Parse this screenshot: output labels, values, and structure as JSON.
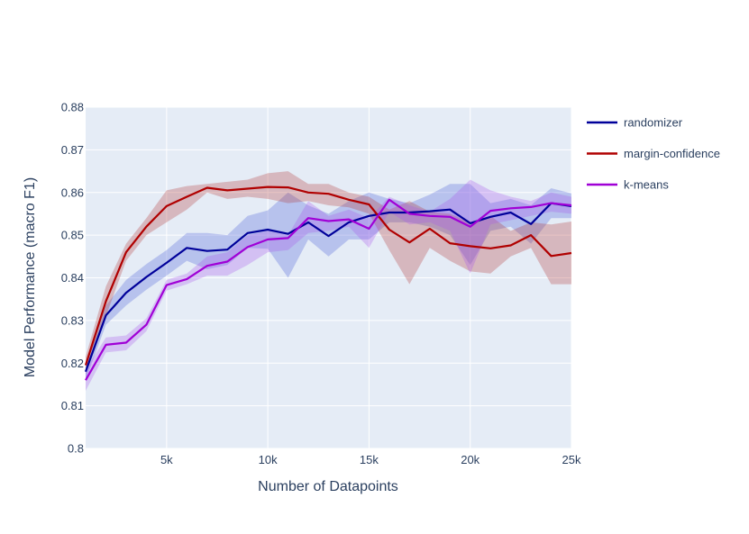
{
  "chart_data": {
    "type": "line",
    "title": "",
    "xlabel": "Number of Datapoints",
    "ylabel": "Model Performance (macro F1)",
    "xlim": [
      1000,
      25000
    ],
    "ylim": [
      0.8,
      0.88
    ],
    "x_ticks": [
      5000,
      10000,
      15000,
      20000,
      25000
    ],
    "x_tick_labels": [
      "5k",
      "10k",
      "15k",
      "20k",
      "25k"
    ],
    "y_ticks": [
      0.8,
      0.81,
      0.82,
      0.83,
      0.84,
      0.85,
      0.86,
      0.87,
      0.88
    ],
    "y_tick_labels": [
      "0.8",
      "0.81",
      "0.82",
      "0.83",
      "0.84",
      "0.85",
      "0.86",
      "0.87",
      "0.88"
    ],
    "grid": true,
    "legend_position": "top-right",
    "x": [
      1000,
      2000,
      3000,
      4000,
      5000,
      6000,
      7000,
      8000,
      9000,
      10000,
      11000,
      12000,
      13000,
      14000,
      15000,
      16000,
      17000,
      18000,
      19000,
      20000,
      21000,
      22000,
      23000,
      24000,
      25000
    ],
    "series": [
      {
        "name": "randomizer",
        "color": "#00009a",
        "band_color": "rgba(90,110,220,0.33)",
        "values": [
          0.818,
          0.8312,
          0.8365,
          0.8402,
          0.8435,
          0.847,
          0.8463,
          0.8466,
          0.8505,
          0.8513,
          0.8503,
          0.853,
          0.8498,
          0.853,
          0.8545,
          0.8553,
          0.8553,
          0.8556,
          0.856,
          0.8528,
          0.8543,
          0.8553,
          0.8526,
          0.8575,
          0.8568
        ],
        "upper": [
          0.82,
          0.8335,
          0.8395,
          0.8432,
          0.8465,
          0.8505,
          0.8505,
          0.85,
          0.8545,
          0.8558,
          0.86,
          0.857,
          0.855,
          0.858,
          0.86,
          0.8585,
          0.8575,
          0.8595,
          0.862,
          0.862,
          0.8575,
          0.8585,
          0.857,
          0.861,
          0.8598
        ],
        "lower": [
          0.816,
          0.829,
          0.8335,
          0.8372,
          0.8405,
          0.844,
          0.842,
          0.843,
          0.847,
          0.8468,
          0.84,
          0.849,
          0.845,
          0.849,
          0.849,
          0.853,
          0.853,
          0.852,
          0.85,
          0.843,
          0.851,
          0.852,
          0.848,
          0.854,
          0.854
        ]
      },
      {
        "name": "margin-confidence",
        "color": "#b00000",
        "band_color": "rgba(180,60,60,0.30)",
        "values": [
          0.8195,
          0.8345,
          0.846,
          0.852,
          0.8568,
          0.859,
          0.8611,
          0.8605,
          0.8609,
          0.8613,
          0.8612,
          0.86,
          0.8597,
          0.8583,
          0.8572,
          0.8513,
          0.8483,
          0.8515,
          0.8481,
          0.8474,
          0.8469,
          0.8476,
          0.85,
          0.8451,
          0.8458
        ],
        "upper": [
          0.8215,
          0.838,
          0.848,
          0.854,
          0.8605,
          0.8615,
          0.862,
          0.8625,
          0.863,
          0.8645,
          0.865,
          0.862,
          0.862,
          0.86,
          0.859,
          0.856,
          0.858,
          0.8555,
          0.855,
          0.853,
          0.8545,
          0.851,
          0.853,
          0.8525,
          0.8532
        ],
        "lower": [
          0.8175,
          0.831,
          0.844,
          0.85,
          0.853,
          0.856,
          0.86,
          0.8585,
          0.859,
          0.8585,
          0.8575,
          0.858,
          0.857,
          0.8565,
          0.855,
          0.8465,
          0.8385,
          0.847,
          0.844,
          0.8415,
          0.841,
          0.845,
          0.847,
          0.8385,
          0.8385
        ]
      },
      {
        "name": "k-means",
        "color": "#a000d6",
        "band_color": "rgba(170,90,235,0.30)",
        "values": [
          0.816,
          0.8243,
          0.8248,
          0.829,
          0.8383,
          0.8397,
          0.8428,
          0.8438,
          0.8472,
          0.849,
          0.8493,
          0.854,
          0.8533,
          0.8537,
          0.8515,
          0.8583,
          0.855,
          0.8545,
          0.8543,
          0.852,
          0.8557,
          0.8563,
          0.8566,
          0.8575,
          0.857
        ],
        "upper": [
          0.8185,
          0.826,
          0.8265,
          0.8305,
          0.8395,
          0.841,
          0.845,
          0.846,
          0.85,
          0.851,
          0.85,
          0.858,
          0.8545,
          0.856,
          0.854,
          0.859,
          0.857,
          0.8555,
          0.8585,
          0.863,
          0.8605,
          0.859,
          0.858,
          0.86,
          0.859
        ],
        "lower": [
          0.8135,
          0.8225,
          0.823,
          0.8275,
          0.837,
          0.8385,
          0.8405,
          0.8405,
          0.843,
          0.846,
          0.8465,
          0.8505,
          0.851,
          0.852,
          0.847,
          0.8555,
          0.8525,
          0.853,
          0.851,
          0.841,
          0.8525,
          0.8535,
          0.8545,
          0.8555,
          0.855
        ]
      }
    ]
  }
}
